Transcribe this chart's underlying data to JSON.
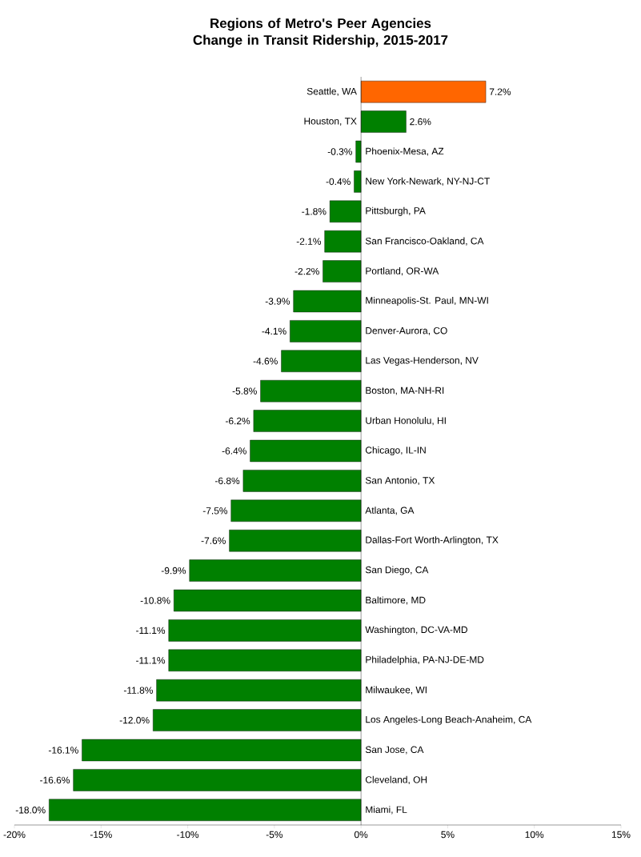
{
  "chart_data": {
    "type": "bar",
    "orientation": "horizontal",
    "title": "Regions of Metro's Peer Agencies\nChange in Transit Ridership, 2015-2017",
    "categories": [
      "Seattle, WA",
      "Houston, TX",
      "Phoenix-Mesa, AZ",
      "New York-Newark, NY-NJ-CT",
      "Pittsburgh, PA",
      "San Francisco-Oakland, CA",
      "Portland, OR-WA",
      "Minneapolis-St. Paul, MN-WI",
      "Denver-Aurora, CO",
      "Las Vegas-Henderson, NV",
      "Boston, MA-NH-RI",
      "Urban Honolulu, HI",
      "Chicago, IL-IN",
      "San Antonio, TX",
      "Atlanta, GA",
      "Dallas-Fort Worth-Arlington, TX",
      "San Diego, CA",
      "Baltimore, MD",
      "Washington, DC-VA-MD",
      "Philadelphia, PA-NJ-DE-MD",
      "Milwaukee, WI",
      "Los Angeles-Long Beach-Anaheim, CA",
      "San Jose, CA",
      "Cleveland, OH",
      "Miami, FL"
    ],
    "values": [
      7.2,
      2.6,
      -0.3,
      -0.4,
      -1.8,
      -2.1,
      -2.2,
      -3.9,
      -4.1,
      -4.6,
      -5.8,
      -6.2,
      -6.4,
      -6.8,
      -7.5,
      -7.6,
      -9.9,
      -10.8,
      -11.1,
      -11.1,
      -11.8,
      -12.0,
      -16.1,
      -16.6,
      -18.0
    ],
    "value_labels": [
      "7.2%",
      "2.6%",
      "-0.3%",
      "-0.4%",
      "-1.8%",
      "-2.1%",
      "-2.2%",
      "-3.9%",
      "-4.1%",
      "-4.6%",
      "-5.8%",
      "-6.2%",
      "-6.4%",
      "-6.8%",
      "-7.5%",
      "-7.6%",
      "-9.9%",
      "-10.8%",
      "-11.1%",
      "-11.1%",
      "-11.8%",
      "-12.0%",
      "-16.1%",
      "-16.6%",
      "-18.0%"
    ],
    "colors": [
      "#ff6600",
      "#008000",
      "#008000",
      "#008000",
      "#008000",
      "#008000",
      "#008000",
      "#008000",
      "#008000",
      "#008000",
      "#008000",
      "#008000",
      "#008000",
      "#008000",
      "#008000",
      "#008000",
      "#008000",
      "#008000",
      "#008000",
      "#008000",
      "#008000",
      "#008000",
      "#008000",
      "#008000",
      "#008000"
    ],
    "xlim": [
      -20,
      15
    ],
    "xticks": [
      {
        "value": -20,
        "label": "-20%"
      },
      {
        "value": -15,
        "label": "-15%"
      },
      {
        "value": -10,
        "label": "-10%"
      },
      {
        "value": -5,
        "label": "-5%"
      },
      {
        "value": 0,
        "label": "0%"
      },
      {
        "value": 5,
        "label": "5%"
      },
      {
        "value": 10,
        "label": "10%"
      },
      {
        "value": 15,
        "label": "15%"
      }
    ],
    "grid": false
  }
}
